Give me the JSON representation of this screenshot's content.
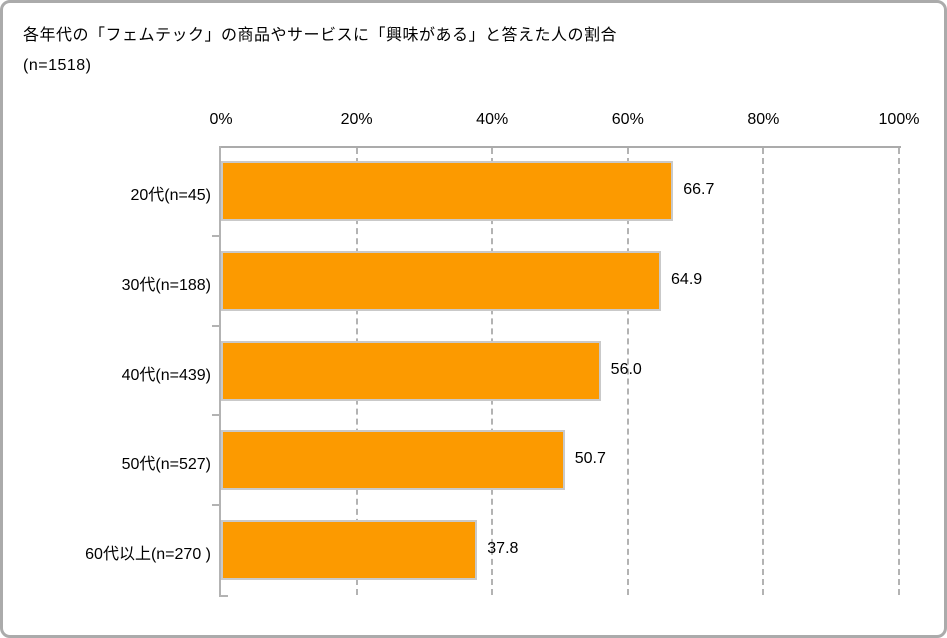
{
  "header": {
    "title": "各年代の「フェムテック」の商品やサービスに「興味がある」と答えた人の割合",
    "subtitle": "(n=1518)"
  },
  "chart_data": {
    "type": "bar",
    "orientation": "horizontal",
    "title": "各年代の「フェムテック」の商品やサービスに「興味がある」と答えた人の割合",
    "subtitle": "(n=1518)",
    "categories": [
      "20代(n=45)",
      "30代(n=188)",
      "40代(n=439)",
      "50代(n=527)",
      "60代以上(n=270 )"
    ],
    "values": [
      66.7,
      64.9,
      56.0,
      50.7,
      37.8
    ],
    "value_labels": [
      "66.7",
      "64.9",
      "56.0",
      "50.7",
      "37.8"
    ],
    "xlabel": "",
    "ylabel": "",
    "xlim": [
      0,
      100
    ],
    "x_tick_percents": [
      0,
      20,
      40,
      60,
      80,
      100
    ],
    "x_tick_labels": [
      "0%",
      "20%",
      "40%",
      "60%",
      "80%",
      "100%"
    ],
    "grid": "vertical-dashed",
    "legend": "none",
    "colors": {
      "bar_fill": "#fc9a00",
      "bar_border": "#c9c9c9",
      "axis": "#ababab",
      "gridline": "#b3b3b3",
      "text": "#000000",
      "panel_border": "#ababab",
      "background": "#ffffff"
    }
  }
}
